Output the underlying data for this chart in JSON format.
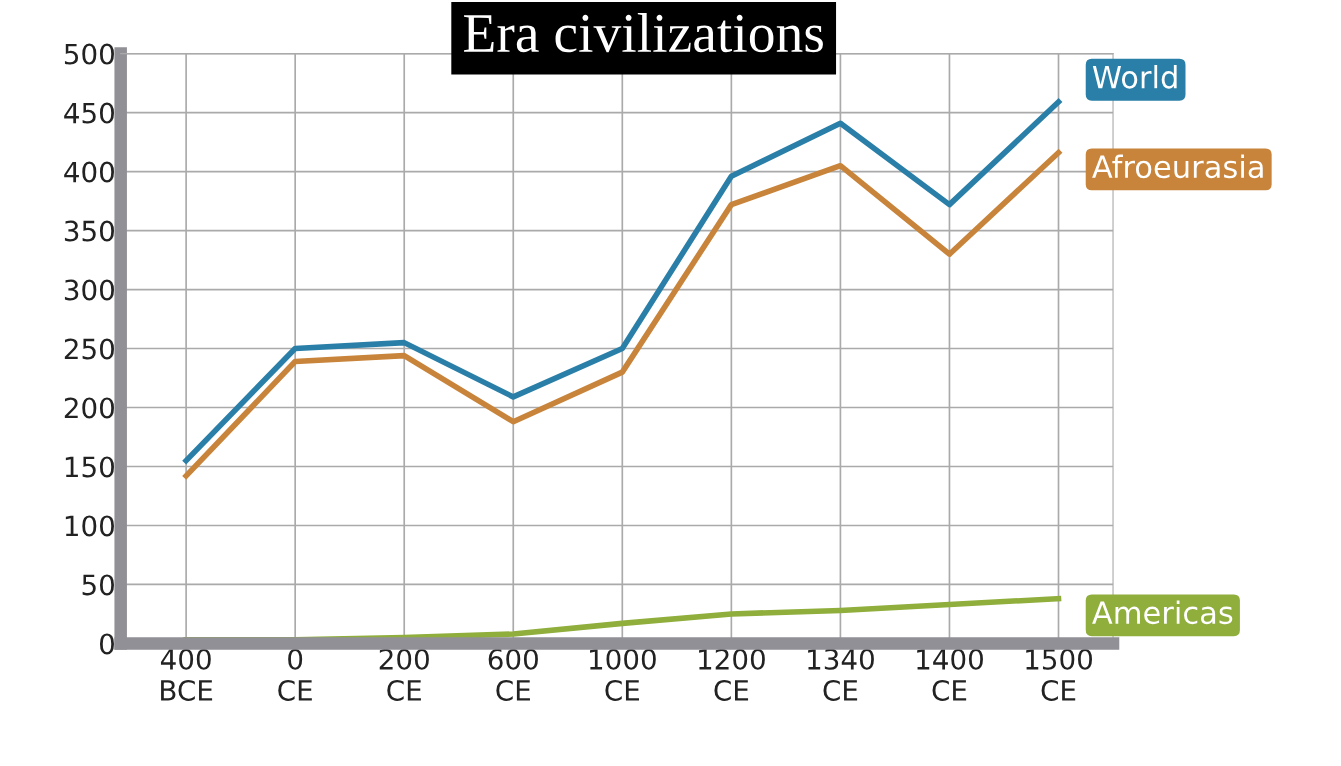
{
  "chart_data": {
    "type": "line",
    "title": "Era civilizations",
    "categories": [
      "400\nBCE",
      "0\nCE",
      "200\nCE",
      "600\nCE",
      "1000\nCE",
      "1200\nCE",
      "1340\nCE",
      "1400\nCE",
      "1500\nCE"
    ],
    "series": [
      {
        "name": "World",
        "color": "#2a7fa8",
        "values": [
          155,
          250,
          255,
          209,
          250,
          396,
          441,
          372,
          459
        ]
      },
      {
        "name": "Afroeurasia",
        "color": "#c8843a",
        "values": [
          142,
          239,
          244,
          188,
          230,
          372,
          405,
          330,
          416
        ]
      },
      {
        "name": "Americas",
        "color": "#8fae3c",
        "values": [
          3,
          3,
          5,
          8,
          17,
          25,
          28,
          33,
          38
        ]
      }
    ],
    "ylim": [
      0,
      500
    ],
    "yticks": [
      0,
      50,
      100,
      150,
      200,
      250,
      300,
      350,
      400,
      450,
      500
    ],
    "grid": true,
    "line_style": "solid",
    "marker": "none"
  }
}
